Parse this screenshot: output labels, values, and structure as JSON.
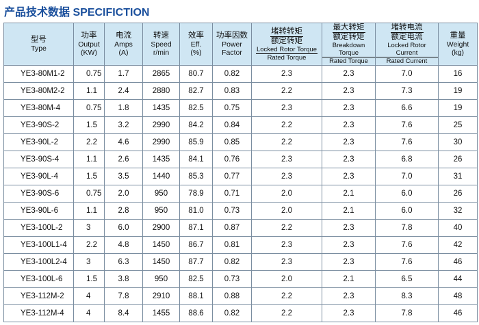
{
  "title": "产品技术数据 SPECIFICTION",
  "table": {
    "headers": [
      {
        "lines": [
          "型号",
          "Type"
        ]
      },
      {
        "lines": [
          "功率",
          "Output",
          "(KW)"
        ]
      },
      {
        "lines": [
          "电流",
          "Amps",
          "(A)"
        ]
      },
      {
        "lines": [
          "转速",
          "Speed",
          "r/min"
        ]
      },
      {
        "lines": [
          "效率",
          "Eff.",
          "(%)"
        ]
      },
      {
        "lines": [
          "功率因数",
          "Power",
          "Factor"
        ]
      },
      {
        "cn": [
          "堵转转矩",
          "额定转矩"
        ],
        "en": [
          "Locked Rotor Torque",
          "Rated Torque"
        ]
      },
      {
        "cn": [
          "最大转矩",
          "额定转矩"
        ],
        "en": [
          "Breakdown Torque",
          "Rated Torque"
        ]
      },
      {
        "cn": [
          "堵转电流",
          "额定电流"
        ],
        "en": [
          "Locked Rotor Current",
          "Rated Current"
        ]
      },
      {
        "lines": [
          "重量",
          "Weight",
          "(kg)"
        ]
      }
    ],
    "rows": [
      [
        "YE3-80M1-2",
        "0.75",
        "1.7",
        "2865",
        "80.7",
        "0.82",
        "2.3",
        "2.3",
        "7.0",
        "16"
      ],
      [
        "YE3-80M2-2",
        "1.1",
        "2.4",
        "2880",
        "82.7",
        "0.83",
        "2.2",
        "2.3",
        "7.3",
        "19"
      ],
      [
        "YE3-80M-4",
        "0.75",
        "1.8",
        "1435",
        "82.5",
        "0.75",
        "2.3",
        "2.3",
        "6.6",
        "19"
      ],
      [
        "YE3-90S-2",
        "1.5",
        "3.2",
        "2990",
        "84.2",
        "0.84",
        "2.2",
        "2.3",
        "7.6",
        "25"
      ],
      [
        "YE3-90L-2",
        "2.2",
        "4.6",
        "2990",
        "85.9",
        "0.85",
        "2.2",
        "2.3",
        "7.6",
        "30"
      ],
      [
        "YE3-90S-4",
        "1.1",
        "2.6",
        "1435",
        "84.1",
        "0.76",
        "2.3",
        "2.3",
        "6.8",
        "26"
      ],
      [
        "YE3-90L-4",
        "1.5",
        "3.5",
        "1440",
        "85.3",
        "0.77",
        "2.3",
        "2.3",
        "7.0",
        "31"
      ],
      [
        "YE3-90S-6",
        "0.75",
        "2.0",
        "950",
        "78.9",
        "0.71",
        "2.0",
        "2.1",
        "6.0",
        "26"
      ],
      [
        "YE3-90L-6",
        "1.1",
        "2.8",
        "950",
        "81.0",
        "0.73",
        "2.0",
        "2.1",
        "6.0",
        "32"
      ],
      [
        "YE3-100L-2",
        "3",
        "6.0",
        "2900",
        "87.1",
        "0.87",
        "2.2",
        "2.3",
        "7.8",
        "40"
      ],
      [
        "YE3-100L1-4",
        "2.2",
        "4.8",
        "1450",
        "86.7",
        "0.81",
        "2.3",
        "2.3",
        "7.6",
        "42"
      ],
      [
        "YE3-100L2-4",
        "3",
        "6.3",
        "1450",
        "87.7",
        "0.82",
        "2.3",
        "2.3",
        "7.6",
        "46"
      ],
      [
        "YE3-100L-6",
        "1.5",
        "3.8",
        "950",
        "82.5",
        "0.73",
        "2.0",
        "2.1",
        "6.5",
        "44"
      ],
      [
        "YE3-112M-2",
        "4",
        "7.8",
        "2910",
        "88.1",
        "0.88",
        "2.2",
        "2.3",
        "8.3",
        "48"
      ],
      [
        "YE3-112M-4",
        "4",
        "8.4",
        "1455",
        "88.6",
        "0.82",
        "2.2",
        "2.3",
        "7.8",
        "46"
      ]
    ]
  }
}
